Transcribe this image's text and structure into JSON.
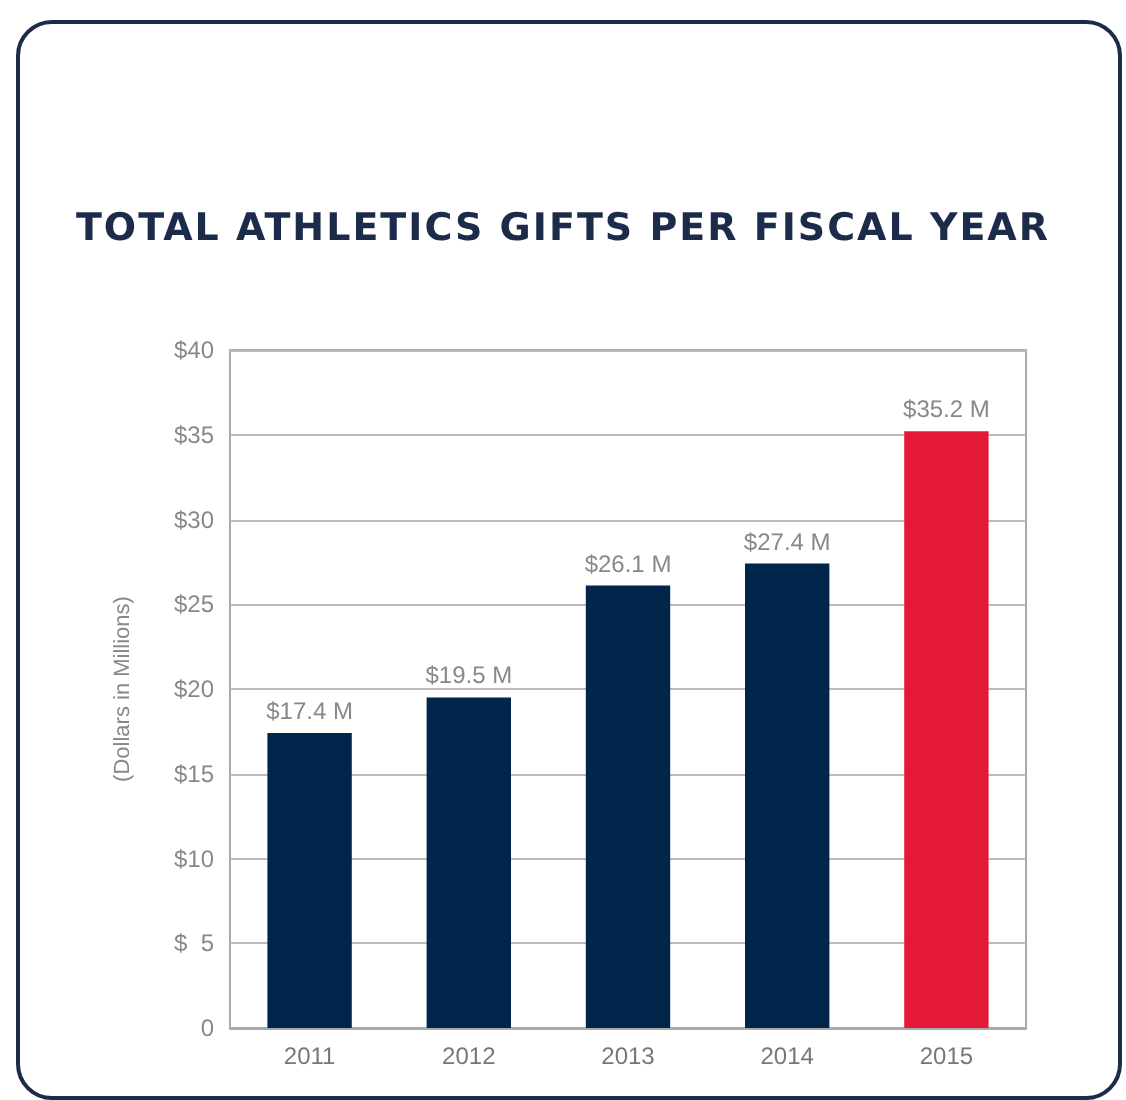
{
  "chart_data": {
    "type": "bar",
    "title": "TOTAL ATHLETICS GIFTS PER FISCAL YEAR",
    "ylabel": "(Dollars in Millions)",
    "categories": [
      "2011",
      "2012",
      "2013",
      "2014",
      "2015"
    ],
    "values": [
      17.4,
      19.5,
      26.1,
      27.4,
      35.2
    ],
    "colors": [
      "#00264c",
      "#00264c",
      "#00264c",
      "#00264c",
      "#e31937"
    ],
    "value_labels": [
      "$17.4 M",
      "$19.5 M",
      "$26.1 M",
      "$27.4 M",
      "$35.2 M"
    ],
    "ylim": [
      0,
      40
    ],
    "yticks": [
      {
        "value": 0,
        "label": "0"
      },
      {
        "value": 5,
        "label": "$  5"
      },
      {
        "value": 10,
        "label": "$10"
      },
      {
        "value": 15,
        "label": "$15"
      },
      {
        "value": 20,
        "label": "$20"
      },
      {
        "value": 25,
        "label": "$25"
      },
      {
        "value": 30,
        "label": "$30"
      },
      {
        "value": 35,
        "label": "$35"
      },
      {
        "value": 40,
        "label": "$40"
      }
    ],
    "grid": "y"
  }
}
